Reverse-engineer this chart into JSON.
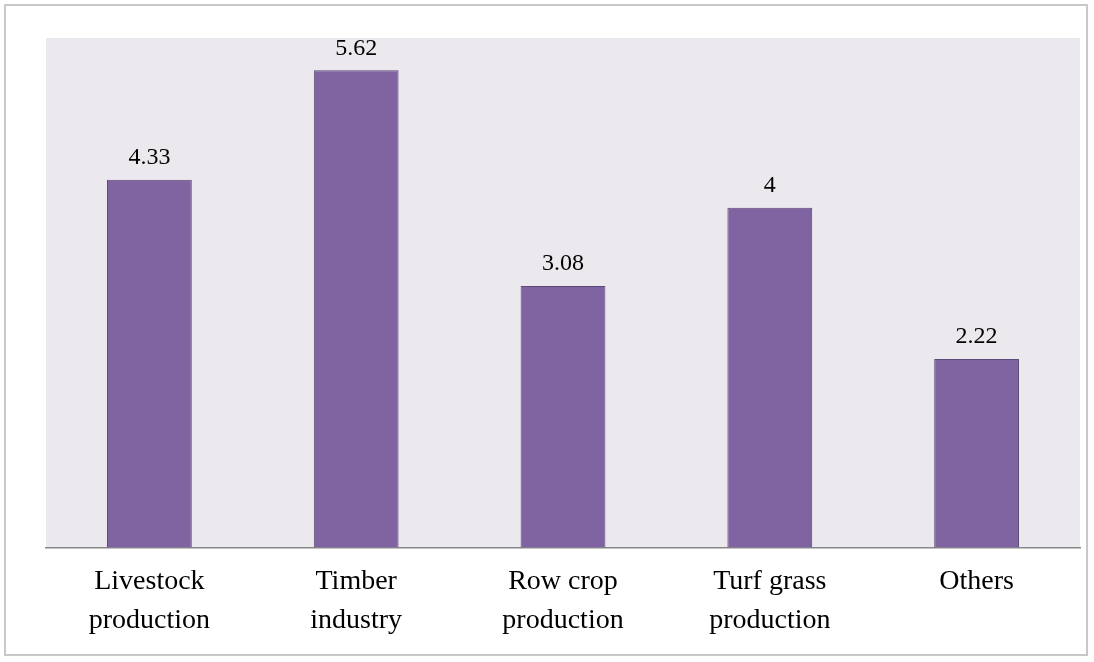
{
  "chart_data": {
    "type": "bar",
    "categories": [
      "Livestock production",
      "Timber industry",
      "Row crop production",
      "Turf grass production",
      "Others"
    ],
    "values": [
      4.33,
      5.62,
      3.08,
      4,
      2.22
    ],
    "color": "#8064a2",
    "data_labels": true,
    "grid": false,
    "legend": false
  }
}
